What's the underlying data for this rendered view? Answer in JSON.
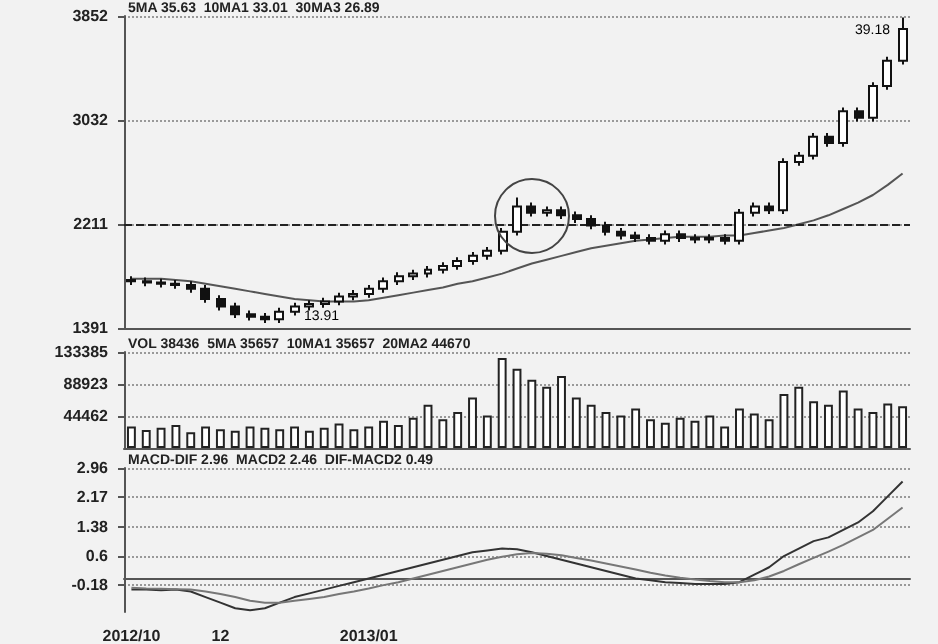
{
  "chart_data": [
    {
      "type": "candlestick",
      "title": "5MA 35.63  10MA1 33.01  30MA3 26.89",
      "color": "#111111",
      "categories": [
        "2012/10",
        null,
        null,
        null,
        null,
        null,
        "12",
        null,
        null,
        null,
        null,
        null,
        null,
        null,
        null,
        null,
        "2013/01",
        null,
        null,
        null,
        null,
        null,
        null,
        null,
        null,
        null,
        null,
        null,
        null,
        null,
        null,
        null,
        null,
        null,
        null,
        null,
        null,
        null,
        null,
        null,
        null,
        null,
        null,
        null,
        null,
        null,
        null,
        null,
        null,
        null,
        null,
        null,
        null
      ],
      "ohlc": [
        [
          1770,
          1800,
          1730,
          1760
        ],
        [
          1760,
          1790,
          1720,
          1750
        ],
        [
          1750,
          1780,
          1710,
          1740
        ],
        [
          1740,
          1770,
          1700,
          1730
        ],
        [
          1730,
          1760,
          1670,
          1700
        ],
        [
          1700,
          1730,
          1590,
          1620
        ],
        [
          1620,
          1650,
          1530,
          1560
        ],
        [
          1560,
          1590,
          1470,
          1500
        ],
        [
          1500,
          1530,
          1450,
          1480
        ],
        [
          1480,
          1510,
          1430,
          1460
        ],
        [
          1460,
          1550,
          1430,
          1520
        ],
        [
          1520,
          1590,
          1490,
          1560
        ],
        [
          1560,
          1610,
          1530,
          1580
        ],
        [
          1580,
          1630,
          1550,
          1600
        ],
        [
          1600,
          1670,
          1570,
          1640
        ],
        [
          1640,
          1690,
          1610,
          1660
        ],
        [
          1660,
          1730,
          1630,
          1700
        ],
        [
          1700,
          1790,
          1670,
          1760
        ],
        [
          1760,
          1830,
          1730,
          1800
        ],
        [
          1800,
          1850,
          1770,
          1820
        ],
        [
          1820,
          1880,
          1790,
          1850
        ],
        [
          1850,
          1910,
          1820,
          1880
        ],
        [
          1880,
          1950,
          1850,
          1920
        ],
        [
          1920,
          1990,
          1890,
          1960
        ],
        [
          1960,
          2030,
          1930,
          2000
        ],
        [
          2000,
          2180,
          1970,
          2150
        ],
        [
          2150,
          2420,
          2120,
          2350
        ],
        [
          2350,
          2380,
          2270,
          2300
        ],
        [
          2300,
          2350,
          2270,
          2320
        ],
        [
          2320,
          2350,
          2250,
          2280
        ],
        [
          2280,
          2310,
          2220,
          2250
        ],
        [
          2250,
          2280,
          2170,
          2200
        ],
        [
          2200,
          2230,
          2120,
          2150
        ],
        [
          2150,
          2180,
          2090,
          2120
        ],
        [
          2120,
          2150,
          2070,
          2100
        ],
        [
          2100,
          2130,
          2050,
          2080
        ],
        [
          2080,
          2160,
          2050,
          2130
        ],
        [
          2130,
          2160,
          2070,
          2100
        ],
        [
          2100,
          2130,
          2060,
          2090
        ],
        [
          2090,
          2130,
          2060,
          2100
        ],
        [
          2100,
          2130,
          2050,
          2080
        ],
        [
          2080,
          2330,
          2050,
          2300
        ],
        [
          2300,
          2380,
          2270,
          2350
        ],
        [
          2350,
          2380,
          2290,
          2320
        ],
        [
          2320,
          2730,
          2290,
          2700
        ],
        [
          2700,
          2780,
          2670,
          2750
        ],
        [
          2750,
          2930,
          2720,
          2900
        ],
        [
          2900,
          2930,
          2820,
          2850
        ],
        [
          2850,
          3130,
          2820,
          3100
        ],
        [
          3100,
          3130,
          3020,
          3050
        ],
        [
          3050,
          3330,
          3020,
          3300
        ],
        [
          3300,
          3530,
          3270,
          3500
        ],
        [
          3500,
          3840,
          3470,
          3750
        ]
      ],
      "series": [
        {
          "type": "line",
          "color": "#555555",
          "values": [
            1780,
            1780,
            1780,
            1770,
            1760,
            1740,
            1720,
            1700,
            1680,
            1660,
            1640,
            1620,
            1610,
            1600,
            1600,
            1600,
            1610,
            1630,
            1650,
            1670,
            1690,
            1710,
            1740,
            1760,
            1790,
            1820,
            1860,
            1900,
            1930,
            1960,
            1990,
            2020,
            2040,
            2060,
            2080,
            2090,
            2100,
            2110,
            2110,
            2110,
            2120,
            2120,
            2140,
            2160,
            2180,
            2210,
            2240,
            2280,
            2330,
            2380,
            2440,
            2520,
            2610
          ]
        }
      ],
      "ylim": [
        1391,
        3852
      ],
      "yticks": [
        1391,
        2211,
        3032,
        3852
      ],
      "grid": "y",
      "tick_labels": "y",
      "ref_lines": [
        {
          "axis": "y",
          "value": 2211,
          "color": "#222222",
          "line_style": "dashed"
        }
      ],
      "annotations": [
        "13.91",
        "39.18"
      ]
    },
    {
      "type": "bar",
      "title": "VOL 38436  5MA 35657  10MA1 35657  20MA2 44670",
      "color": "#222222",
      "categories": [
        "2012/10",
        null,
        null,
        null,
        null,
        null,
        "12",
        null,
        null,
        null,
        null,
        null,
        null,
        null,
        null,
        null,
        "2013/01",
        null,
        null,
        null,
        null,
        null,
        null,
        null,
        null,
        null,
        null,
        null,
        null,
        null,
        null,
        null,
        null,
        null,
        null,
        null,
        null,
        null,
        null,
        null,
        null,
        null,
        null,
        null,
        null,
        null,
        null,
        null,
        null,
        null,
        null,
        null,
        null
      ],
      "values": [
        30000,
        25000,
        28000,
        32000,
        22000,
        30000,
        26000,
        24000,
        30000,
        28000,
        26000,
        30000,
        24000,
        28000,
        34000,
        26000,
        30000,
        38000,
        32000,
        42000,
        60000,
        40000,
        50000,
        70000,
        45000,
        125000,
        110000,
        95000,
        85000,
        100000,
        70000,
        60000,
        50000,
        45000,
        55000,
        40000,
        35000,
        42000,
        38000,
        45000,
        30000,
        55000,
        48000,
        40000,
        75000,
        85000,
        65000,
        60000,
        80000,
        55000,
        50000,
        62000,
        58000
      ],
      "ylim": [
        0,
        133385
      ],
      "yticks": [
        44462,
        88923,
        133385
      ],
      "grid": "y",
      "tick_labels": "y"
    },
    {
      "type": "line",
      "title": "MACD-DIF 2.96  MACD2 2.46  DIF-MACD2 0.49",
      "categories": [
        "2012/10",
        null,
        null,
        null,
        null,
        null,
        "12",
        null,
        null,
        null,
        null,
        null,
        null,
        null,
        null,
        null,
        "2013/01",
        null,
        null,
        null,
        null,
        null,
        null,
        null,
        null,
        null,
        null,
        null,
        null,
        null,
        null,
        null,
        null,
        null,
        null,
        null,
        null,
        null,
        null,
        null,
        null,
        null,
        null,
        null,
        null,
        null,
        null,
        null,
        null,
        null,
        null,
        null,
        null
      ],
      "series": [
        {
          "color": "#333333",
          "values": [
            -0.3,
            -0.3,
            -0.32,
            -0.3,
            -0.35,
            -0.5,
            -0.65,
            -0.8,
            -0.85,
            -0.8,
            -0.65,
            -0.5,
            -0.4,
            -0.3,
            -0.2,
            -0.1,
            0,
            0.1,
            0.2,
            0.3,
            0.4,
            0.5,
            0.6,
            0.7,
            0.75,
            0.8,
            0.78,
            0.7,
            0.6,
            0.5,
            0.4,
            0.3,
            0.2,
            0.1,
            0,
            -0.05,
            -0.1,
            -0.12,
            -0.15,
            -0.15,
            -0.15,
            -0.1,
            0.1,
            0.3,
            0.6,
            0.8,
            1.0,
            1.1,
            1.3,
            1.5,
            1.8,
            2.2,
            2.6
          ]
        },
        {
          "color": "#777777",
          "values": [
            -0.25,
            -0.27,
            -0.28,
            -0.29,
            -0.3,
            -0.35,
            -0.42,
            -0.5,
            -0.6,
            -0.65,
            -0.65,
            -0.6,
            -0.55,
            -0.5,
            -0.42,
            -0.35,
            -0.27,
            -0.18,
            -0.1,
            0,
            0.1,
            0.2,
            0.3,
            0.4,
            0.5,
            0.58,
            0.65,
            0.68,
            0.66,
            0.62,
            0.55,
            0.48,
            0.4,
            0.32,
            0.24,
            0.15,
            0.08,
            0.02,
            -0.03,
            -0.07,
            -0.1,
            -0.1,
            -0.05,
            0.05,
            0.2,
            0.38,
            0.55,
            0.72,
            0.9,
            1.1,
            1.3,
            1.6,
            1.9
          ]
        }
      ],
      "ylim": [
        -0.9,
        2.96
      ],
      "yticks": [
        -0.18,
        0.6,
        1.38,
        2.17,
        2.96
      ],
      "grid": "y",
      "marker": "none",
      "line_style": "solid"
    }
  ]
}
